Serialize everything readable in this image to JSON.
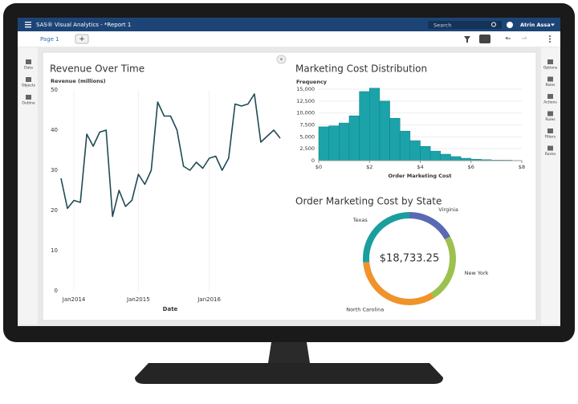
{
  "app": {
    "title": "SAS® Visual Analytics - *Report 1",
    "search": "Search",
    "user": "Atrin Assa",
    "page_tab": "Page 1",
    "left_panel": [
      "Data",
      "Objects",
      "Outline"
    ],
    "right_panel": [
      "Options",
      "Roles",
      "Actions",
      "Rules",
      "Filters",
      "Ranks"
    ]
  },
  "chart_data": [
    {
      "type": "line",
      "title": "Revenue Over Time",
      "xlabel": "Date",
      "ylabel": "Revenue (millions)",
      "categories": [
        null,
        null,
        "Jan2014",
        null,
        null,
        null,
        null,
        null,
        null,
        null,
        null,
        null,
        "Jan2015",
        null,
        null,
        null,
        null,
        null,
        null,
        null,
        null,
        null,
        null,
        "Jan2016",
        null,
        null,
        null,
        null,
        null,
        null,
        null,
        null,
        null,
        null,
        null
      ],
      "values": [
        28,
        20.5,
        22.5,
        22,
        39,
        36,
        39.5,
        40,
        18.5,
        25,
        21,
        22.5,
        29,
        26.5,
        30,
        47,
        43.5,
        43.5,
        40,
        31,
        30,
        32,
        30.5,
        33,
        33.5,
        30,
        33,
        46.5,
        46,
        46.5,
        49,
        37,
        38.5,
        40,
        38
      ],
      "color": "#1f4b55",
      "ylim": [
        0,
        50
      ],
      "yticks": [
        0,
        10,
        20,
        30,
        40,
        50
      ],
      "grid": false
    },
    {
      "type": "histogram",
      "title": "Marketing Cost Distribution",
      "xlabel": "Order Marketing Cost",
      "ylabel": "Frequency",
      "bins": [
        0,
        0.4,
        0.8,
        1.2,
        1.6,
        2.0,
        2.4,
        2.8,
        3.2,
        3.6,
        4.0,
        4.4,
        4.8,
        5.2,
        5.6,
        6.0,
        6.4,
        6.8,
        7.2,
        7.6
      ],
      "values": [
        7100,
        7300,
        7900,
        9400,
        14500,
        15200,
        12500,
        8900,
        6200,
        4200,
        3000,
        2000,
        1350,
        850,
        500,
        300,
        200,
        100,
        100
      ],
      "color": "#1ba3a9",
      "xlim": [
        0,
        8
      ],
      "xticks": [
        {
          "value": 0,
          "label": "$0"
        },
        {
          "value": 2,
          "label": "$2"
        },
        {
          "value": 4,
          "label": "$4"
        },
        {
          "value": 6,
          "label": "$6"
        },
        {
          "value": 8,
          "label": "$8"
        }
      ],
      "ylim": [
        0,
        15000
      ],
      "yticks": [
        0,
        {
          "value": 2500,
          "label": "2,500"
        },
        {
          "value": 5000,
          "label": "5,000"
        },
        {
          "value": 7500,
          "label": "7,500"
        },
        {
          "value": 10000,
          "label": "10,000"
        },
        {
          "value": 12500,
          "label": "12,500"
        },
        {
          "value": 15000,
          "label": "15,000"
        }
      ],
      "grid": true
    },
    {
      "type": "donut",
      "title": "Order Marketing Cost by State",
      "categories": [
        "Virginia",
        "New York",
        "North Carolina",
        "Texas"
      ],
      "values": [
        3200,
        4500,
        6100,
        4933.25
      ],
      "colors": [
        "#5a69b3",
        "#9cc14e",
        "#f0932b",
        "#1a9e9e"
      ],
      "total_label": "$18,733.25"
    }
  ]
}
